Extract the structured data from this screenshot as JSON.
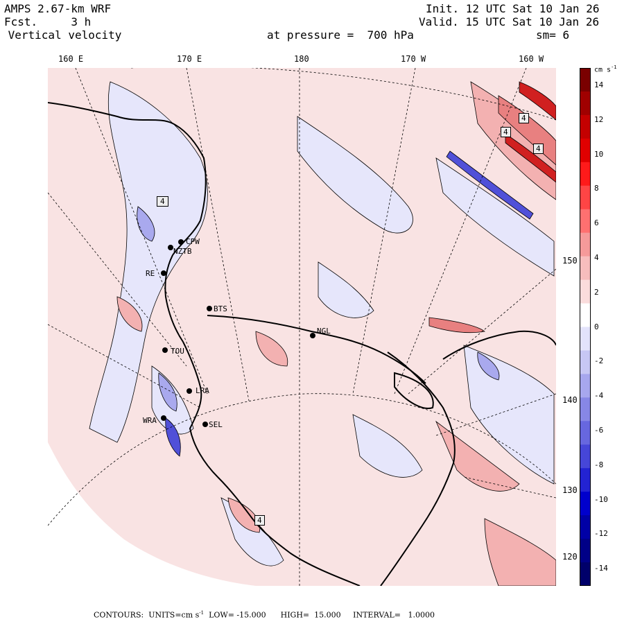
{
  "header": {
    "line1_left": "AMPS 2.67-km WRF",
    "line2_left": "Fcst.     3 h",
    "line3_left": " Vertical velocity",
    "line1_right": "Init. 12 UTC Sat 10 Jan 26",
    "line2_right": "Valid. 15 UTC Sat 10 Jan 26",
    "pressure": "at pressure =  700 hPa",
    "smoothing": "sm= 6"
  },
  "lon_labels": [
    "160 E",
    "170 E",
    "180",
    "170 W",
    "160 W"
  ],
  "lat_labels": [
    "150 W",
    "140 W",
    "130 W",
    "120 W"
  ],
  "stations": [
    "CPW",
    "NZTB",
    "RE",
    "BTS",
    "NGL",
    "TOU",
    "LRA",
    "SEL",
    "WRA"
  ],
  "contour_markers": [
    "4",
    "4",
    "4",
    "4",
    "4"
  ],
  "colorbar": {
    "units": "cm s",
    "units_exp": "-1",
    "ticks": [
      "14",
      "12",
      "10",
      "8",
      "6",
      "4",
      "2",
      "0",
      "-2",
      "-4",
      "-6",
      "-8",
      "-10",
      "-12",
      "-14"
    ],
    "colors": [
      "#7a0000",
      "#a00000",
      "#c40000",
      "#e00000",
      "#ff1a1a",
      "#ff4545",
      "#ff7070",
      "#f59a9a",
      "#f7bdbd",
      "#fadcdc",
      "#ffffff",
      "#e3e3fb",
      "#c7c7f4",
      "#a7a7ee",
      "#8787e6",
      "#6767df",
      "#4646d8",
      "#2323d2",
      "#0000cc",
      "#0000a6",
      "#000087",
      "#00006a"
    ]
  },
  "footer": {
    "prefix": "CONTOURS:  UNITS=cm s",
    "units_exp": "-1",
    "rest": "  LOW= -15.000      HIGH=  15.000     INTERVAL=   1.0000"
  },
  "map_colors": {
    "background": "#f9e3e3",
    "positive_light": "#f3b1b1",
    "positive_mid": "#e88080",
    "positive_strong": "#d02020",
    "negative_light": "#e6e6fb",
    "negative_mid": "#a9a9ee",
    "negative_strong": "#5050d8",
    "coast": "#000000"
  }
}
